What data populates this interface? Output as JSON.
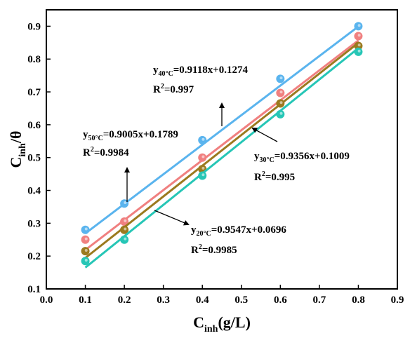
{
  "chart_data": {
    "type": "scatter",
    "xlabel": {
      "main": "C",
      "sub": "inh",
      "tail": "(g/L)"
    },
    "ylabel": {
      "main": "C",
      "sub": "inh",
      "tail": "/θ"
    },
    "xlim": [
      0.0,
      0.9
    ],
    "ylim": [
      0.1,
      0.95
    ],
    "x_ticks": [
      "0.0",
      "0.1",
      "0.2",
      "0.3",
      "0.4",
      "0.5",
      "0.6",
      "0.7",
      "0.8",
      "0.9"
    ],
    "y_ticks": [
      "0.1",
      "0.2",
      "0.3",
      "0.4",
      "0.5",
      "0.6",
      "0.7",
      "0.8",
      "0.9"
    ],
    "grid": false,
    "series": [
      {
        "key": "t50",
        "color": "#5ab4ee",
        "x": [
          0.1,
          0.2,
          0.4,
          0.6,
          0.8
        ],
        "y": [
          0.28,
          0.36,
          0.553,
          0.74,
          0.9
        ],
        "fit": {
          "slope": 0.9005,
          "intercept": 0.1789
        }
      },
      {
        "key": "t40",
        "color": "#f08080",
        "x": [
          0.1,
          0.2,
          0.4,
          0.6,
          0.8
        ],
        "y": [
          0.25,
          0.305,
          0.5,
          0.697,
          0.87
        ],
        "fit": {
          "slope": 0.9118,
          "intercept": 0.1274
        }
      },
      {
        "key": "t30",
        "color": "#9b7a1e",
        "x": [
          0.1,
          0.2,
          0.4,
          0.6,
          0.8
        ],
        "y": [
          0.215,
          0.28,
          0.465,
          0.665,
          0.84
        ],
        "fit": {
          "slope": 0.9356,
          "intercept": 0.1009
        }
      },
      {
        "key": "t20",
        "color": "#26c6b6",
        "x": [
          0.1,
          0.2,
          0.4,
          0.6,
          0.8
        ],
        "y": [
          0.185,
          0.25,
          0.445,
          0.632,
          0.822
        ],
        "fit": {
          "slope": 0.9547,
          "intercept": 0.0696
        }
      }
    ],
    "annotations": [
      {
        "key": "t40",
        "y_prefix": "y",
        "sub": "40°C",
        "equation": "=0.9118x+0.1274",
        "r_prefix": "R",
        "sup": "2",
        "r_value": "=0.997"
      },
      {
        "key": "t50",
        "y_prefix": "y",
        "sub": "50°C",
        "equation": "=0.9005x+0.1789",
        "r_prefix": "R",
        "sup": "2",
        "r_value": "=0.9984"
      },
      {
        "key": "t30",
        "y_prefix": "y",
        "sub": "30°C",
        "equation": "=0.9356x+0.1009",
        "r_prefix": "R",
        "sup": "2",
        "r_value": "=0.995"
      },
      {
        "key": "t20",
        "y_prefix": "y",
        "sub": "20°C",
        "equation": "=0.9547x+0.0696",
        "r_prefix": "R",
        "sup": "2",
        "r_value": "=0.9985"
      }
    ]
  }
}
